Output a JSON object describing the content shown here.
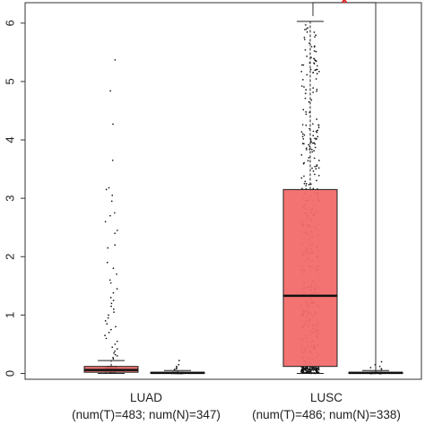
{
  "chart_data": {
    "type": "boxplot",
    "ylim": [
      -0.1,
      6.35
    ],
    "yticks": [
      0,
      1,
      2,
      3,
      4,
      5,
      6
    ],
    "grid": false,
    "groups": [
      {
        "name": "LUAD",
        "sub_label": "(num(T)=483; num(N)=347)",
        "boxes": [
          {
            "kind": "T",
            "n": 483,
            "color": "#f26b6b",
            "q1": 0.02,
            "median": 0.06,
            "q3": 0.12,
            "whisker_low": 0.0,
            "whisker_high": 0.22,
            "max": 5.37,
            "outliers": [
              5.37,
              4.84,
              4.27,
              3.65,
              3.18,
              3.15,
              3.05,
              2.95,
              2.75,
              2.7,
              2.6,
              2.45,
              2.4,
              2.2,
              2.15,
              1.9,
              1.8,
              1.7,
              1.6,
              1.55,
              1.45,
              1.38,
              1.3,
              1.25,
              1.2,
              1.15,
              1.1,
              1.05,
              1.0,
              0.95,
              0.9,
              0.85,
              0.8,
              0.75,
              0.7,
              0.65,
              0.6,
              0.55,
              0.5,
              0.45,
              0.42,
              0.38,
              0.35,
              0.32,
              0.3,
              0.27,
              0.25
            ]
          },
          {
            "kind": "N",
            "n": 347,
            "color": "#f26b6b",
            "q1": 0.0,
            "median": 0.01,
            "q3": 0.02,
            "whisker_low": 0.0,
            "whisker_high": 0.05,
            "max": 0.22,
            "outliers": [
              0.22,
              0.15,
              0.12,
              0.1,
              0.08,
              0.07,
              0.06
            ]
          }
        ]
      },
      {
        "name": "LUSC",
        "sub_label": "(num(T)=486; num(N)=338)",
        "boxes": [
          {
            "kind": "T",
            "n": 486,
            "color": "#f26b6b",
            "q1": 0.12,
            "median": 1.33,
            "q3": 3.15,
            "whisker_low": 0.0,
            "whisker_high": 6.03,
            "max": 6.03,
            "outliers": []
          },
          {
            "kind": "N",
            "n": 338,
            "color": "#f26b6b",
            "q1": 0.0,
            "median": 0.01,
            "q3": 0.02,
            "whisker_low": 0.0,
            "whisker_high": 0.05,
            "max": 0.2,
            "outliers": [
              0.2,
              0.15,
              0.12,
              0.1,
              0.08,
              0.07
            ]
          }
        ]
      }
    ],
    "significance": [
      {
        "group": "LUSC",
        "label": "*",
        "color": "#e11d1d"
      }
    ]
  }
}
